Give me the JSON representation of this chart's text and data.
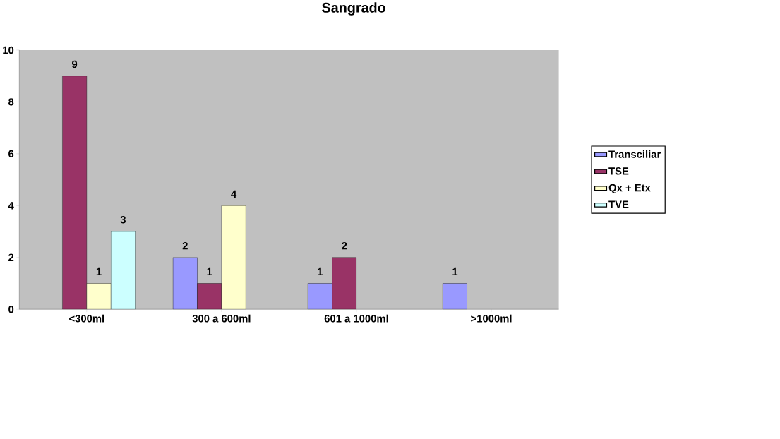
{
  "chart_data": {
    "type": "bar",
    "title": "Sangrado",
    "categories": [
      "<300ml",
      "300 a 600ml",
      "601 a 1000ml",
      ">1000ml"
    ],
    "series": [
      {
        "name": "Transciliar",
        "color": "#9999ff",
        "values": [
          null,
          2,
          1,
          1
        ]
      },
      {
        "name": "TSE",
        "color": "#993366",
        "values": [
          9,
          1,
          2,
          null
        ]
      },
      {
        "name": "Qx + Etx",
        "color": "#ffffcc",
        "values": [
          1,
          4,
          null,
          null
        ]
      },
      {
        "name": "TVE",
        "color": "#ccffff",
        "values": [
          3,
          null,
          null,
          null
        ]
      }
    ],
    "ylim": [
      0,
      10
    ],
    "yticks": [
      0,
      2,
      4,
      6,
      8,
      10
    ],
    "data_labels": true,
    "legend": "right",
    "grid": false
  }
}
